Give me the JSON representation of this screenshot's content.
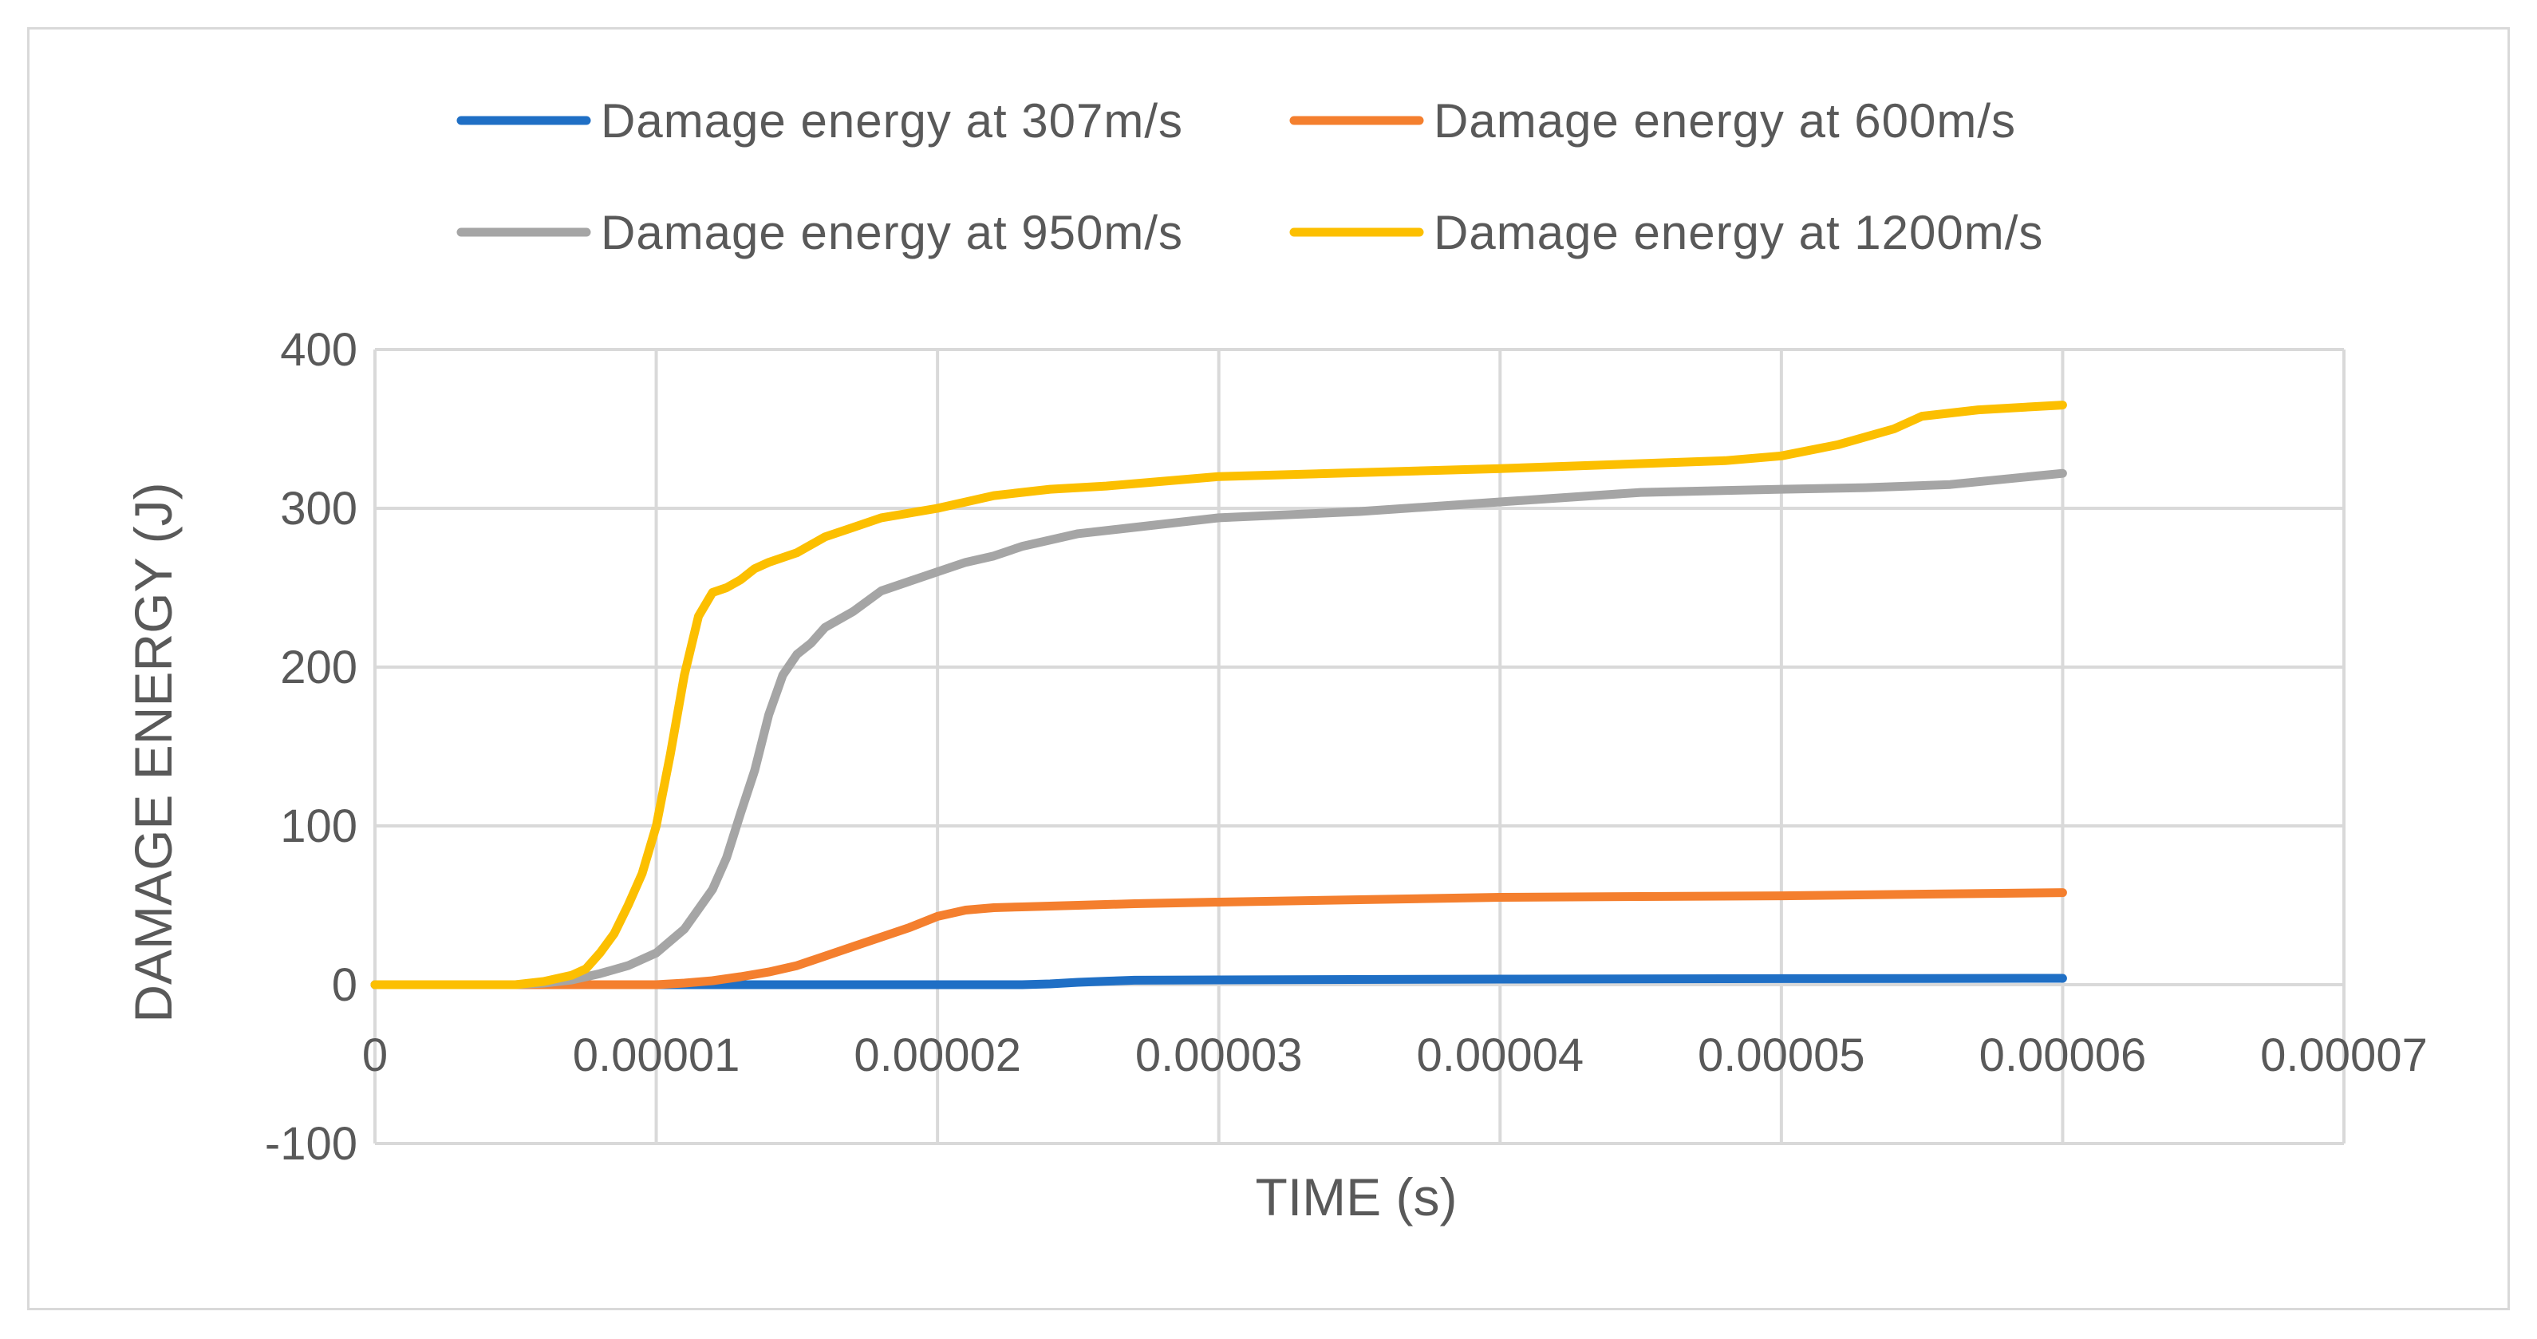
{
  "chart_data": {
    "type": "line",
    "title": "",
    "xlabel": "TIME (s)",
    "ylabel": "DAMAGE ENERGY (J)",
    "xlim": [
      0,
      7e-05
    ],
    "ylim": [
      -100,
      400
    ],
    "x_ticks": [
      0,
      1e-05,
      2e-05,
      3e-05,
      4e-05,
      5e-05,
      6e-05,
      7e-05
    ],
    "x_tick_labels": [
      "0",
      "0.00001",
      "0.00002",
      "0.00003",
      "0.00004",
      "0.00005",
      "0.00006",
      "0.00007"
    ],
    "y_ticks": [
      -100,
      0,
      100,
      200,
      300,
      400
    ],
    "y_tick_labels": [
      "-100",
      "0",
      "100",
      "200",
      "300",
      "400"
    ],
    "grid": true,
    "legend_position": "top",
    "series": [
      {
        "name": "Damage energy at 307m/s",
        "color": "#1f6fc5",
        "x": [
          0,
          1e-05,
          2e-05,
          2.3e-05,
          2.4e-05,
          2.5e-05,
          2.6e-05,
          2.7e-05,
          3e-05,
          4e-05,
          5e-05,
          6e-05
        ],
        "y": [
          0,
          0,
          0,
          0,
          0.5,
          1.5,
          2.2,
          2.8,
          3,
          3.5,
          3.8,
          4
        ]
      },
      {
        "name": "Damage energy at 600m/s",
        "color": "#f47f2e",
        "x": [
          0,
          8e-06,
          1e-05,
          1.1e-05,
          1.2e-05,
          1.3e-05,
          1.4e-05,
          1.5e-05,
          1.6e-05,
          1.7e-05,
          1.8e-05,
          1.9e-05,
          2e-05,
          2.1e-05,
          2.2e-05,
          2.3e-05,
          2.5e-05,
          2.7e-05,
          3e-05,
          4e-05,
          5e-05,
          6e-05
        ],
        "y": [
          0,
          0,
          0,
          1,
          2.5,
          5,
          8,
          12,
          18,
          24,
          30,
          36,
          43,
          47,
          48.5,
          49,
          50,
          51,
          52,
          55,
          56,
          58
        ]
      },
      {
        "name": "Damage energy at 950m/s",
        "color": "#a5a5a5",
        "x": [
          0,
          4e-06,
          5e-06,
          6e-06,
          7e-06,
          8e-06,
          9e-06,
          1e-05,
          1.1e-05,
          1.2e-05,
          1.25e-05,
          1.3e-05,
          1.35e-05,
          1.4e-05,
          1.45e-05,
          1.5e-05,
          1.55e-05,
          1.6e-05,
          1.7e-05,
          1.8e-05,
          1.9e-05,
          2e-05,
          2.1e-05,
          2.2e-05,
          2.3e-05,
          2.4e-05,
          2.5e-05,
          2.7e-05,
          3e-05,
          3.5e-05,
          4e-05,
          4.5e-05,
          5e-05,
          5.3e-05,
          5.6e-05,
          6e-05
        ],
        "y": [
          0,
          0,
          0,
          1,
          3,
          7,
          12,
          20,
          35,
          60,
          80,
          108,
          135,
          170,
          195,
          208,
          215,
          225,
          235,
          248,
          254,
          260,
          266,
          270,
          276,
          280,
          284,
          288,
          294,
          298,
          304,
          310,
          312,
          313,
          315,
          322
        ]
      },
      {
        "name": "Damage energy at 1200m/s",
        "color": "#fcbf00",
        "x": [
          0,
          4e-06,
          5e-06,
          6e-06,
          7e-06,
          7.5e-06,
          8e-06,
          8.5e-06,
          9e-06,
          9.5e-06,
          1e-05,
          1.05e-05,
          1.1e-05,
          1.15e-05,
          1.2e-05,
          1.25e-05,
          1.3e-05,
          1.35e-05,
          1.4e-05,
          1.5e-05,
          1.6e-05,
          1.7e-05,
          1.8e-05,
          1.9e-05,
          2e-05,
          2.2e-05,
          2.4e-05,
          2.6e-05,
          3e-05,
          4e-05,
          4.8e-05,
          5e-05,
          5.2e-05,
          5.4e-05,
          5.5e-05,
          5.7e-05,
          6e-05
        ],
        "y": [
          0,
          0,
          0,
          2,
          6,
          10,
          20,
          32,
          50,
          70,
          100,
          145,
          195,
          232,
          247,
          250,
          255,
          262,
          266,
          272,
          282,
          288,
          294,
          297,
          300,
          308,
          312,
          314,
          320,
          325,
          330,
          333,
          340,
          350,
          358,
          362,
          365
        ]
      }
    ]
  }
}
